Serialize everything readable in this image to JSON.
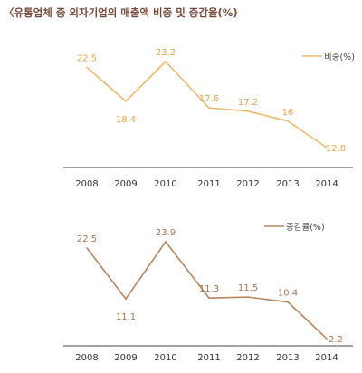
{
  "title": "〈유통업체 중 외자기업의 매출액 비중 및 증감율(%)",
  "colors": {
    "title": "#7a4a3a",
    "series1": "#f0b86a",
    "series1_label": "#e8a448",
    "series2": "#b8865e",
    "series2_label": "#a87550",
    "axis": "#444444"
  },
  "chart_data": [
    {
      "type": "line",
      "categories": [
        "2008",
        "2009",
        "2010",
        "2011",
        "2012",
        "2013",
        "2014"
      ],
      "series": [
        {
          "name": "비중(%)",
          "values": [
            22.5,
            18.4,
            23.2,
            17.6,
            17.2,
            16,
            12.8
          ]
        }
      ],
      "data_labels": [
        "22.5",
        "18.4",
        "23.2",
        "17.6",
        "17.2",
        "16",
        "12.8"
      ],
      "legend": "top-right",
      "grid": false
    },
    {
      "type": "line",
      "categories": [
        "2008",
        "2009",
        "2010",
        "2011",
        "2012",
        "2013",
        "2014"
      ],
      "series": [
        {
          "name": "증감률(%)",
          "values": [
            22.5,
            11.1,
            23.9,
            11.3,
            11.5,
            10.4,
            2.2
          ]
        }
      ],
      "data_labels": [
        "22.5",
        "11.1",
        "23.9",
        "11.3",
        "11.5",
        "10.4",
        "2.2"
      ],
      "legend": "top-right",
      "grid": false
    }
  ]
}
